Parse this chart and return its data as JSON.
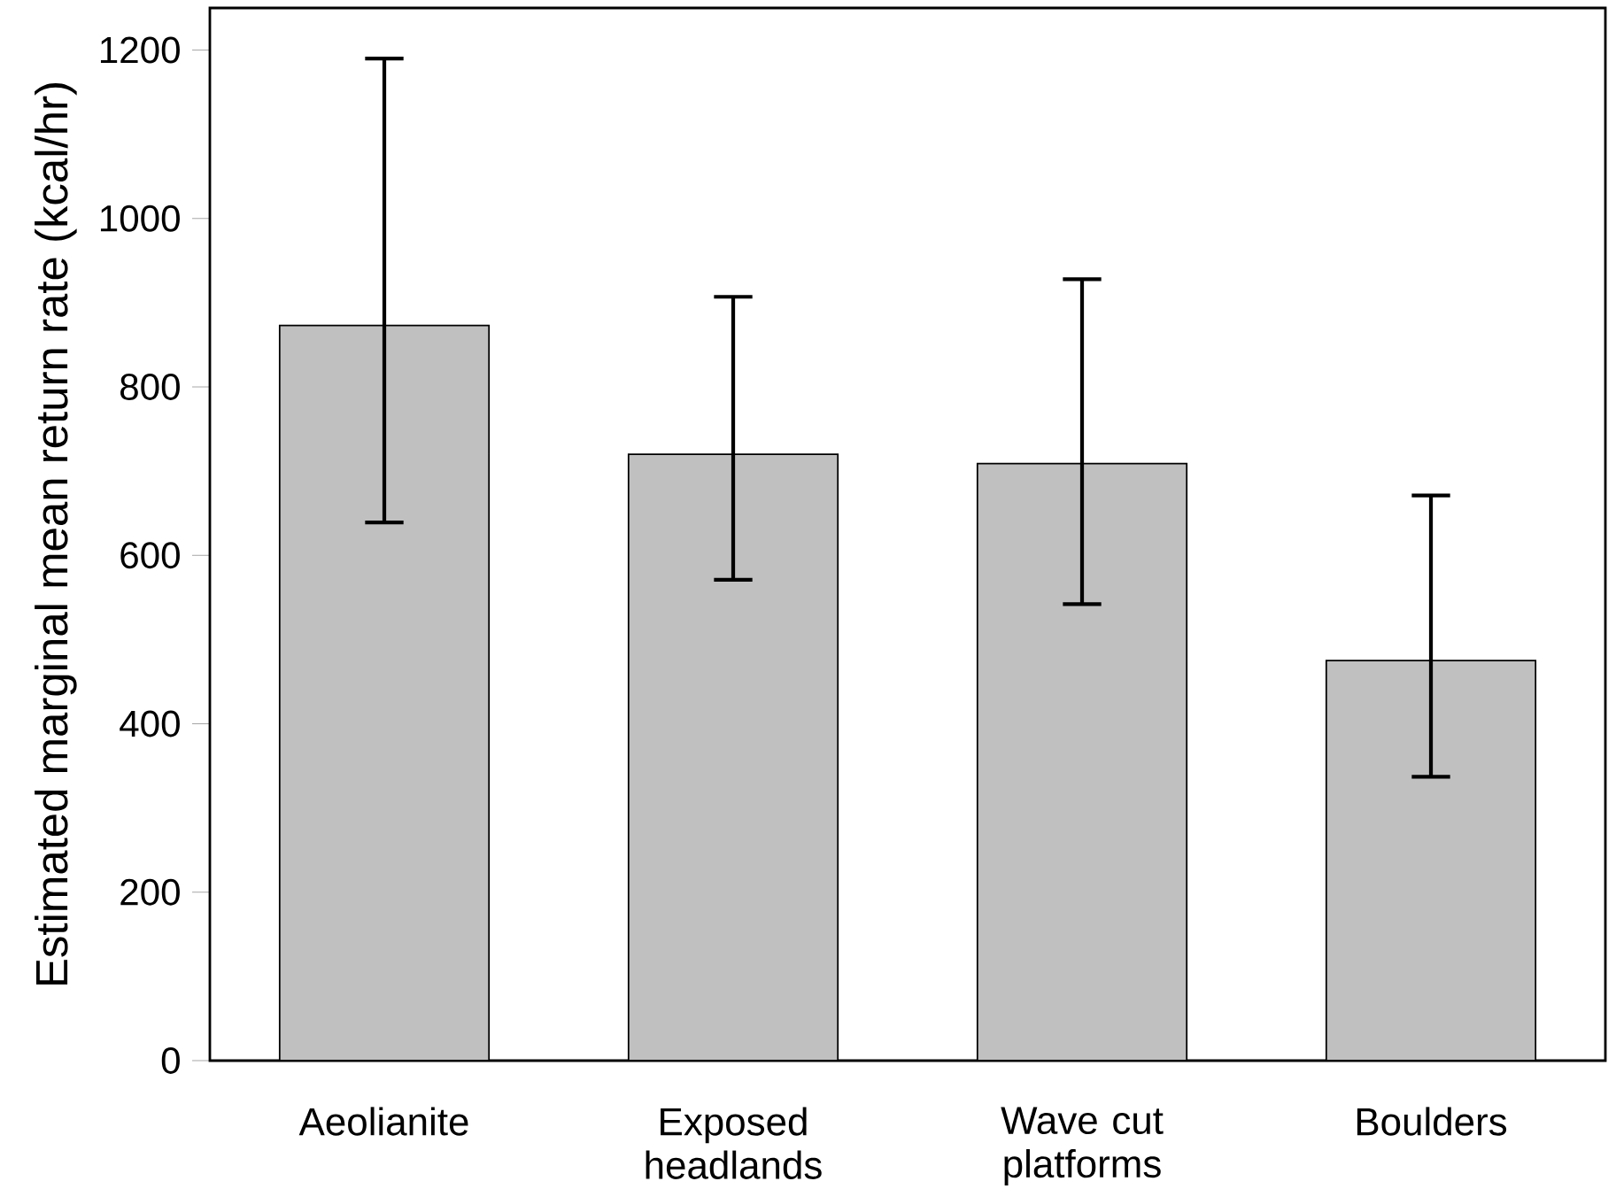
{
  "chart_data": {
    "type": "bar",
    "ylabel": "Estimated marginal mean return rate (kcal/hr)",
    "categories": [
      "Aeolianite",
      "Exposed headlands",
      "Wave cut platforms",
      "Boulders"
    ],
    "values": [
      873,
      720,
      709,
      475
    ],
    "errors": [
      [
        639,
        1190
      ],
      [
        571,
        907
      ],
      [
        542,
        928
      ],
      [
        337,
        671
      ]
    ],
    "color": "#c0c0c0",
    "ylim": [
      0,
      1250
    ],
    "yticks": [
      0,
      200,
      400,
      600,
      800,
      1000,
      1200
    ],
    "grid": false
  }
}
